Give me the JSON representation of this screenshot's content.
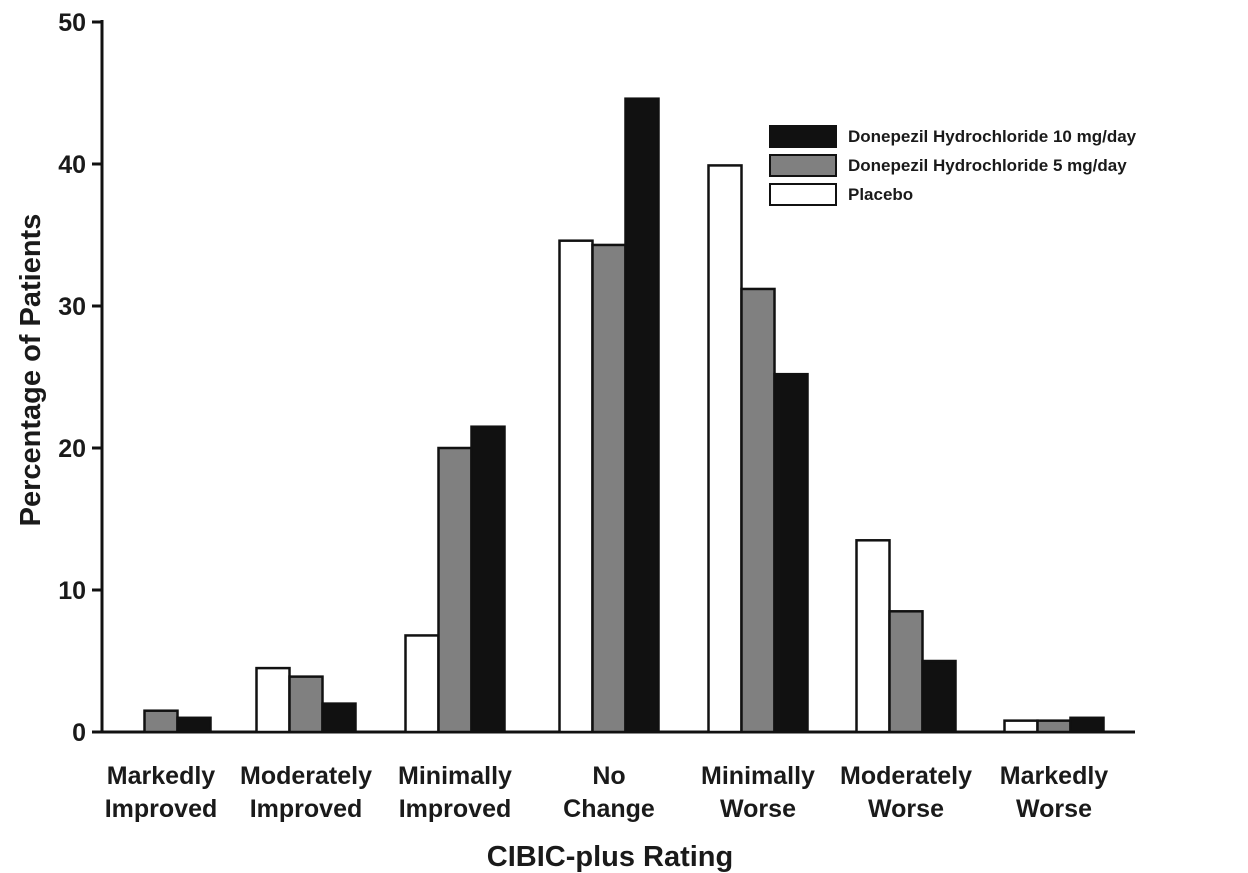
{
  "chart_data": {
    "type": "bar",
    "title": "",
    "xlabel": "CIBIC-plus Rating",
    "ylabel": "Percentage of Patients",
    "ylim": [
      0,
      50
    ],
    "yticks": [
      "0",
      "10",
      "20",
      "30",
      "40",
      "50"
    ],
    "grid": false,
    "legend_position": "top-right",
    "categories": [
      [
        "Markedly",
        "Improved"
      ],
      [
        "Moderately",
        "Improved"
      ],
      [
        "Minimally",
        "Improved"
      ],
      [
        "No",
        "Change"
      ],
      [
        "Minimally",
        "Worse"
      ],
      [
        "Moderately",
        "Worse"
      ],
      [
        "Markedly",
        "Worse"
      ]
    ],
    "series": [
      {
        "name": "Placebo",
        "color": "#ffffff",
        "values": [
          0,
          4.5,
          6.8,
          34.6,
          39.9,
          13.5,
          0.8
        ]
      },
      {
        "name": "Donepezil Hydrochloride 5 mg/day",
        "color": "#808080",
        "values": [
          1.5,
          3.9,
          20.0,
          34.3,
          31.2,
          8.5,
          0.8
        ]
      },
      {
        "name": "Donepezil Hydrochloride 10 mg/day",
        "color": "#111111",
        "values": [
          1.0,
          2.0,
          21.5,
          44.6,
          25.2,
          5.0,
          1.0
        ]
      }
    ],
    "legend_order": [
      2,
      1,
      0
    ]
  }
}
